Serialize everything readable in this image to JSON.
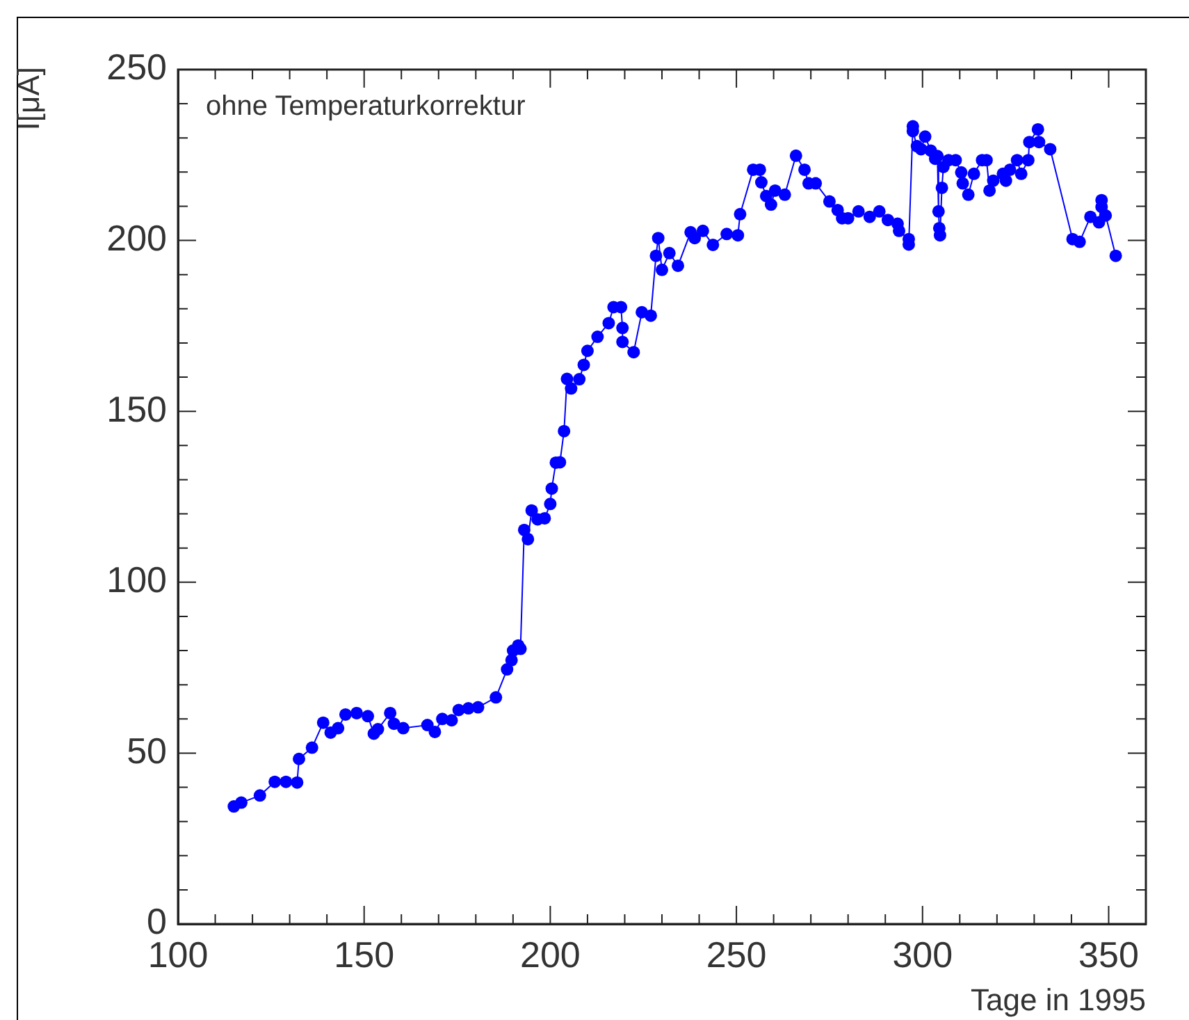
{
  "chart_data": {
    "type": "line",
    "xlabel": "Tage in 1995",
    "ylabel": "I[μA]",
    "annotations": [
      "ohne Temperaturkorrektur"
    ],
    "xlim": [
      100,
      360
    ],
    "ylim": [
      0,
      250
    ],
    "xticks": [
      100,
      {
        "value": 110,
        "label": null
      },
      {
        "value": 120,
        "label": null
      },
      {
        "value": 130,
        "label": null
      },
      {
        "value": 140,
        "label": null
      },
      150,
      {
        "value": 160,
        "label": null
      },
      {
        "value": 170,
        "label": null
      },
      {
        "value": 180,
        "label": null
      },
      {
        "value": 190,
        "label": null
      },
      200,
      {
        "value": 210,
        "label": null
      },
      {
        "value": 220,
        "label": null
      },
      {
        "value": 230,
        "label": null
      },
      {
        "value": 240,
        "label": null
      },
      250,
      {
        "value": 260,
        "label": null
      },
      {
        "value": 270,
        "label": null
      },
      {
        "value": 280,
        "label": null
      },
      {
        "value": 290,
        "label": null
      },
      300,
      {
        "value": 310,
        "label": null
      },
      {
        "value": 320,
        "label": null
      },
      {
        "value": 330,
        "label": null
      },
      {
        "value": 340,
        "label": null
      },
      350
    ],
    "yticks": [
      0,
      {
        "value": 10,
        "label": null
      },
      {
        "value": 20,
        "label": null
      },
      {
        "value": 30,
        "label": null
      },
      {
        "value": 40,
        "label": null
      },
      50,
      {
        "value": 60,
        "label": null
      },
      {
        "value": 70,
        "label": null
      },
      {
        "value": 80,
        "label": null
      },
      {
        "value": 90,
        "label": null
      },
      100,
      {
        "value": 110,
        "label": null
      },
      {
        "value": 120,
        "label": null
      },
      {
        "value": 130,
        "label": null
      },
      {
        "value": 140,
        "label": null
      },
      150,
      {
        "value": 160,
        "label": null
      },
      {
        "value": 170,
        "label": null
      },
      {
        "value": 180,
        "label": null
      },
      {
        "value": 190,
        "label": null
      },
      200,
      {
        "value": 210,
        "label": null
      },
      {
        "value": 220,
        "label": null
      },
      {
        "value": 230,
        "label": null
      },
      {
        "value": 240,
        "label": null
      },
      250
    ],
    "grid": false,
    "legend": false,
    "marker": "circle",
    "line_style": "solid",
    "series": [
      {
        "color": "#0000ff",
        "x": [
          115,
          117,
          122,
          126,
          129,
          132,
          132.5,
          136,
          139,
          141,
          143,
          145,
          148,
          151,
          152.6,
          153.7,
          157,
          158,
          160.5,
          167,
          169,
          171,
          173.5,
          175.4,
          178,
          180.6,
          185.4,
          188.4,
          189.6,
          190,
          191.4,
          192,
          193,
          194,
          195,
          196.6,
          198.5,
          200,
          200.4,
          201.5,
          202.6,
          203.7,
          204.5,
          205.6,
          207.8,
          209,
          210,
          212.7,
          215.7,
          217,
          219,
          219.4,
          219.4,
          222.4,
          224.6,
          227,
          228.4,
          229,
          230,
          232,
          234.3,
          237.7,
          238.8,
          241,
          243.7,
          247.4,
          250.4,
          251,
          254.5,
          256.3,
          256.7,
          258,
          259.3,
          260.4,
          263,
          266,
          268.3,
          269.4,
          271.3,
          275,
          277.2,
          278.4,
          280,
          282.8,
          285.8,
          288.4,
          290.7,
          293.3,
          293.7,
          296.3,
          296.3,
          297.4,
          297.4,
          298.5,
          299.6,
          300.7,
          302.2,
          303.4,
          304,
          304.3,
          304.5,
          304.7,
          305.2,
          305.6,
          307,
          308.9,
          310.4,
          310.8,
          312.3,
          313.8,
          316,
          317.2,
          318,
          319,
          321.6,
          322.4,
          323.5,
          325.4,
          326.5,
          328.4,
          328.7,
          331,
          331.3,
          334.3,
          340.3,
          342.2,
          345.1,
          347.4,
          348.1,
          348.1,
          349.2,
          351.9
        ],
        "values": [
          34.4,
          35.5,
          37.6,
          41.6,
          41.6,
          41.4,
          48.3,
          51.6,
          58.9,
          56,
          57.3,
          61.3,
          61.7,
          60.8,
          55.7,
          57,
          61.7,
          58.6,
          57.3,
          58.2,
          56.2,
          60,
          59.6,
          62.6,
          63.1,
          63.4,
          66.3,
          74.5,
          77.2,
          80,
          81.5,
          80.5,
          115.3,
          112.6,
          121,
          118.4,
          118.7,
          122.9,
          127.4,
          135,
          135.1,
          144.2,
          159.5,
          156.7,
          159.4,
          163.6,
          167.7,
          171.8,
          175.8,
          180.5,
          180.5,
          174.4,
          170.3,
          167.3,
          179,
          178,
          195.5,
          200.7,
          191.4,
          196.3,
          192.6,
          202.4,
          200.7,
          202.8,
          198.7,
          201.9,
          201.5,
          207.7,
          220.7,
          220.7,
          217,
          213,
          210.5,
          214.6,
          213.4,
          224.8,
          220.7,
          216.7,
          216.7,
          211.4,
          208.9,
          206.5,
          206.5,
          208.5,
          206.9,
          208.5,
          206,
          204.9,
          202.8,
          200.4,
          198.8,
          233.4,
          232,
          227.6,
          226.7,
          230.4,
          226.3,
          223.9,
          224.7,
          208.5,
          203.6,
          201.5,
          215.4,
          221.5,
          223.5,
          223.5,
          219.9,
          216.7,
          213.4,
          219.5,
          223.5,
          223.5,
          214.6,
          217.5,
          219.5,
          217.5,
          220.7,
          223.5,
          219.5,
          223.5,
          228.8,
          232.5,
          228.8,
          226.7,
          200.4,
          199.6,
          206.9,
          205.3,
          211.8,
          209.8,
          207.3,
          195.5
        ]
      }
    ]
  }
}
